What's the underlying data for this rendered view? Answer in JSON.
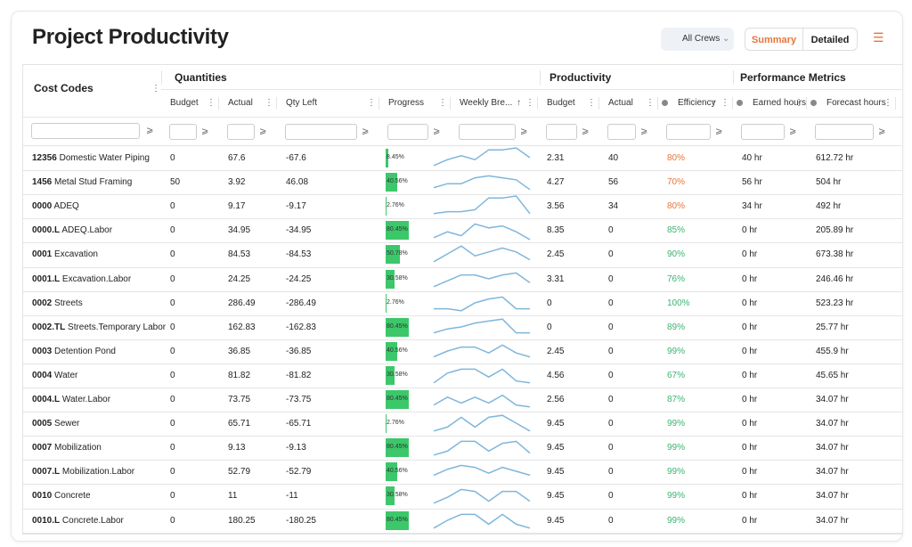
{
  "header": {
    "title": "Project Productivity",
    "crew_filter": "All Crews",
    "view_toggle": [
      "Summary",
      "Detailed"
    ]
  },
  "table": {
    "groups": [
      "Cost Codes",
      "Quantities",
      "Productivity",
      "Performance Metrics"
    ],
    "columns": [
      "Budget",
      "Actual",
      "Qty Left",
      "Progress",
      "Weekly Bre...",
      "Budget",
      "Actual",
      "Efficiency",
      "Earned hours",
      "Forecast hours"
    ],
    "progress_color": "#3cc76a",
    "sparkline_color": "#7fb6dc",
    "sparkline_ylim": [
      0,
      10
    ],
    "rows": [
      {
        "code": "12356",
        "name": "Domestic Water Piping",
        "budget": "0",
        "actual": "67.6",
        "qty_left": "-67.6",
        "progress": 8.45,
        "progress_label": "8.45%",
        "weekly": [
          1,
          4,
          6,
          4,
          9,
          9,
          10,
          5
        ],
        "prod_budget": "2.31",
        "prod_actual": "40",
        "efficiency": "80%",
        "efficiency_color": "#e8743b",
        "earned_hours": "40 hr",
        "forecast_hours": "612.72 hr"
      },
      {
        "code": "1456",
        "name": "Metal Stud Framing",
        "budget": "50",
        "actual": "3.92",
        "qty_left": "46.08",
        "progress": 40.56,
        "progress_label": "40.56%",
        "weekly": [
          2,
          4,
          4,
          7,
          8,
          7,
          6,
          1
        ],
        "prod_budget": "4.27",
        "prod_actual": "56",
        "efficiency": "70%",
        "efficiency_color": "#e8743b",
        "earned_hours": "56 hr",
        "forecast_hours": "504 hr"
      },
      {
        "code": "0000",
        "name": "ADEQ",
        "budget": "0",
        "actual": "9.17",
        "qty_left": "-9.17",
        "progress": 2.76,
        "progress_label": "2.76%",
        "weekly": [
          1,
          2,
          2,
          3,
          9,
          9,
          10,
          1
        ],
        "prod_budget": "3.56",
        "prod_actual": "34",
        "efficiency": "80%",
        "efficiency_color": "#e8743b",
        "earned_hours": "34 hr",
        "forecast_hours": "492 hr"
      },
      {
        "code": "0000.L",
        "name": "ADEQ.Labor",
        "budget": "0",
        "actual": "34.95",
        "qty_left": "-34.95",
        "progress": 80.45,
        "progress_label": "80.45%",
        "weekly": [
          1,
          4,
          2,
          8,
          6,
          7,
          4,
          0
        ],
        "prod_budget": "8.35",
        "prod_actual": "0",
        "efficiency": "85%",
        "efficiency_color": "#3cb371",
        "earned_hours": "0 hr",
        "forecast_hours": "205.89 hr"
      },
      {
        "code": "0001",
        "name": "Excavation",
        "budget": "0",
        "actual": "84.53",
        "qty_left": "-84.53",
        "progress": 50.78,
        "progress_label": "50.78%",
        "weekly": [
          1,
          5,
          9,
          4,
          6,
          8,
          6,
          2
        ],
        "prod_budget": "2.45",
        "prod_actual": "0",
        "efficiency": "90%",
        "efficiency_color": "#3cb371",
        "earned_hours": "0 hr",
        "forecast_hours": "673.38 hr"
      },
      {
        "code": "0001.L",
        "name": "Excavation.Labor",
        "budget": "0",
        "actual": "24.25",
        "qty_left": "-24.25",
        "progress": 30.58,
        "progress_label": "30.58%",
        "weekly": [
          1,
          4,
          7,
          7,
          5,
          7,
          8,
          3
        ],
        "prod_budget": "3.31",
        "prod_actual": "0",
        "efficiency": "76%",
        "efficiency_color": "#3cb371",
        "earned_hours": "0 hr",
        "forecast_hours": "246.46 hr"
      },
      {
        "code": "0002",
        "name": "Streets",
        "budget": "0",
        "actual": "286.49",
        "qty_left": "-286.49",
        "progress": 2.76,
        "progress_label": "2.76%",
        "weekly": [
          2,
          2,
          1,
          5,
          7,
          8,
          2,
          2
        ],
        "prod_budget": "0",
        "prod_actual": "0",
        "efficiency": "100%",
        "efficiency_color": "#3cb371",
        "earned_hours": "0 hr",
        "forecast_hours": "523.23 hr"
      },
      {
        "code": "0002.TL",
        "name": "Streets.Temporary Labor",
        "budget": "0",
        "actual": "162.83",
        "qty_left": "-162.83",
        "progress": 80.45,
        "progress_label": "80.45%",
        "weekly": [
          2,
          4,
          5,
          7,
          8,
          9,
          2,
          2
        ],
        "prod_budget": "0",
        "prod_actual": "0",
        "efficiency": "89%",
        "efficiency_color": "#3cb371",
        "earned_hours": "0 hr",
        "forecast_hours": "25.77 hr"
      },
      {
        "code": "0003",
        "name": "Detention Pond",
        "budget": "0",
        "actual": "36.85",
        "qty_left": "-36.85",
        "progress": 40.56,
        "progress_label": "40.56%",
        "weekly": [
          2,
          5,
          7,
          7,
          4,
          8,
          4,
          2
        ],
        "prod_budget": "2.45",
        "prod_actual": "0",
        "efficiency": "99%",
        "efficiency_color": "#3cb371",
        "earned_hours": "0 hr",
        "forecast_hours": "455.9 hr"
      },
      {
        "code": "0004",
        "name": "Water",
        "budget": "0",
        "actual": "81.82",
        "qty_left": "-81.82",
        "progress": 30.58,
        "progress_label": "30.58%",
        "weekly": [
          1,
          6,
          8,
          8,
          4,
          8,
          2,
          1
        ],
        "prod_budget": "4.56",
        "prod_actual": "0",
        "efficiency": "67%",
        "efficiency_color": "#3cb371",
        "earned_hours": "0 hr",
        "forecast_hours": "45.65 hr"
      },
      {
        "code": "0004.L",
        "name": "Water.Labor",
        "budget": "0",
        "actual": "73.75",
        "qty_left": "-73.75",
        "progress": 80.45,
        "progress_label": "80.45%",
        "weekly": [
          2,
          6,
          3,
          6,
          3,
          7,
          2,
          1
        ],
        "prod_budget": "2.56",
        "prod_actual": "0",
        "efficiency": "87%",
        "efficiency_color": "#3cb371",
        "earned_hours": "0 hr",
        "forecast_hours": "34.07 hr"
      },
      {
        "code": "0005",
        "name": "Sewer",
        "budget": "0",
        "actual": "65.71",
        "qty_left": "-65.71",
        "progress": 2.76,
        "progress_label": "2.76%",
        "weekly": [
          1,
          3,
          8,
          3,
          8,
          9,
          5,
          1
        ],
        "prod_budget": "9.45",
        "prod_actual": "0",
        "efficiency": "99%",
        "efficiency_color": "#3cb371",
        "earned_hours": "0 hr",
        "forecast_hours": "34.07 hr"
      },
      {
        "code": "0007",
        "name": "Mobilization",
        "budget": "0",
        "actual": "9.13",
        "qty_left": "-9.13",
        "progress": 80.45,
        "progress_label": "80.45%",
        "weekly": [
          1,
          3,
          8,
          8,
          3,
          7,
          8,
          2
        ],
        "prod_budget": "9.45",
        "prod_actual": "0",
        "efficiency": "99%",
        "efficiency_color": "#3cb371",
        "earned_hours": "0 hr",
        "forecast_hours": "34.07 hr"
      },
      {
        "code": "0007.L",
        "name": "Mobilization.Labor",
        "budget": "0",
        "actual": "52.79",
        "qty_left": "-52.79",
        "progress": 40.56,
        "progress_label": "40.56%",
        "weekly": [
          3,
          6,
          8,
          7,
          4,
          7,
          5,
          3
        ],
        "prod_budget": "9.45",
        "prod_actual": "0",
        "efficiency": "99%",
        "efficiency_color": "#3cb371",
        "earned_hours": "0 hr",
        "forecast_hours": "34.07 hr"
      },
      {
        "code": "0010",
        "name": "Concrete",
        "budget": "0",
        "actual": "11",
        "qty_left": "-11",
        "progress": 30.58,
        "progress_label": "30.58%",
        "weekly": [
          1,
          4,
          8,
          7,
          2,
          7,
          7,
          2
        ],
        "prod_budget": "9.45",
        "prod_actual": "0",
        "efficiency": "99%",
        "efficiency_color": "#3cb371",
        "earned_hours": "0 hr",
        "forecast_hours": "34.07 hr"
      },
      {
        "code": "0010.L",
        "name": "Concrete.Labor",
        "budget": "0",
        "actual": "180.25",
        "qty_left": "-180.25",
        "progress": 80.45,
        "progress_label": "80.45%",
        "weekly": [
          1,
          5,
          8,
          8,
          3,
          8,
          3,
          1
        ],
        "prod_budget": "9.45",
        "prod_actual": "0",
        "efficiency": "99%",
        "efficiency_color": "#3cb371",
        "earned_hours": "0 hr",
        "forecast_hours": "34.07 hr"
      }
    ]
  }
}
